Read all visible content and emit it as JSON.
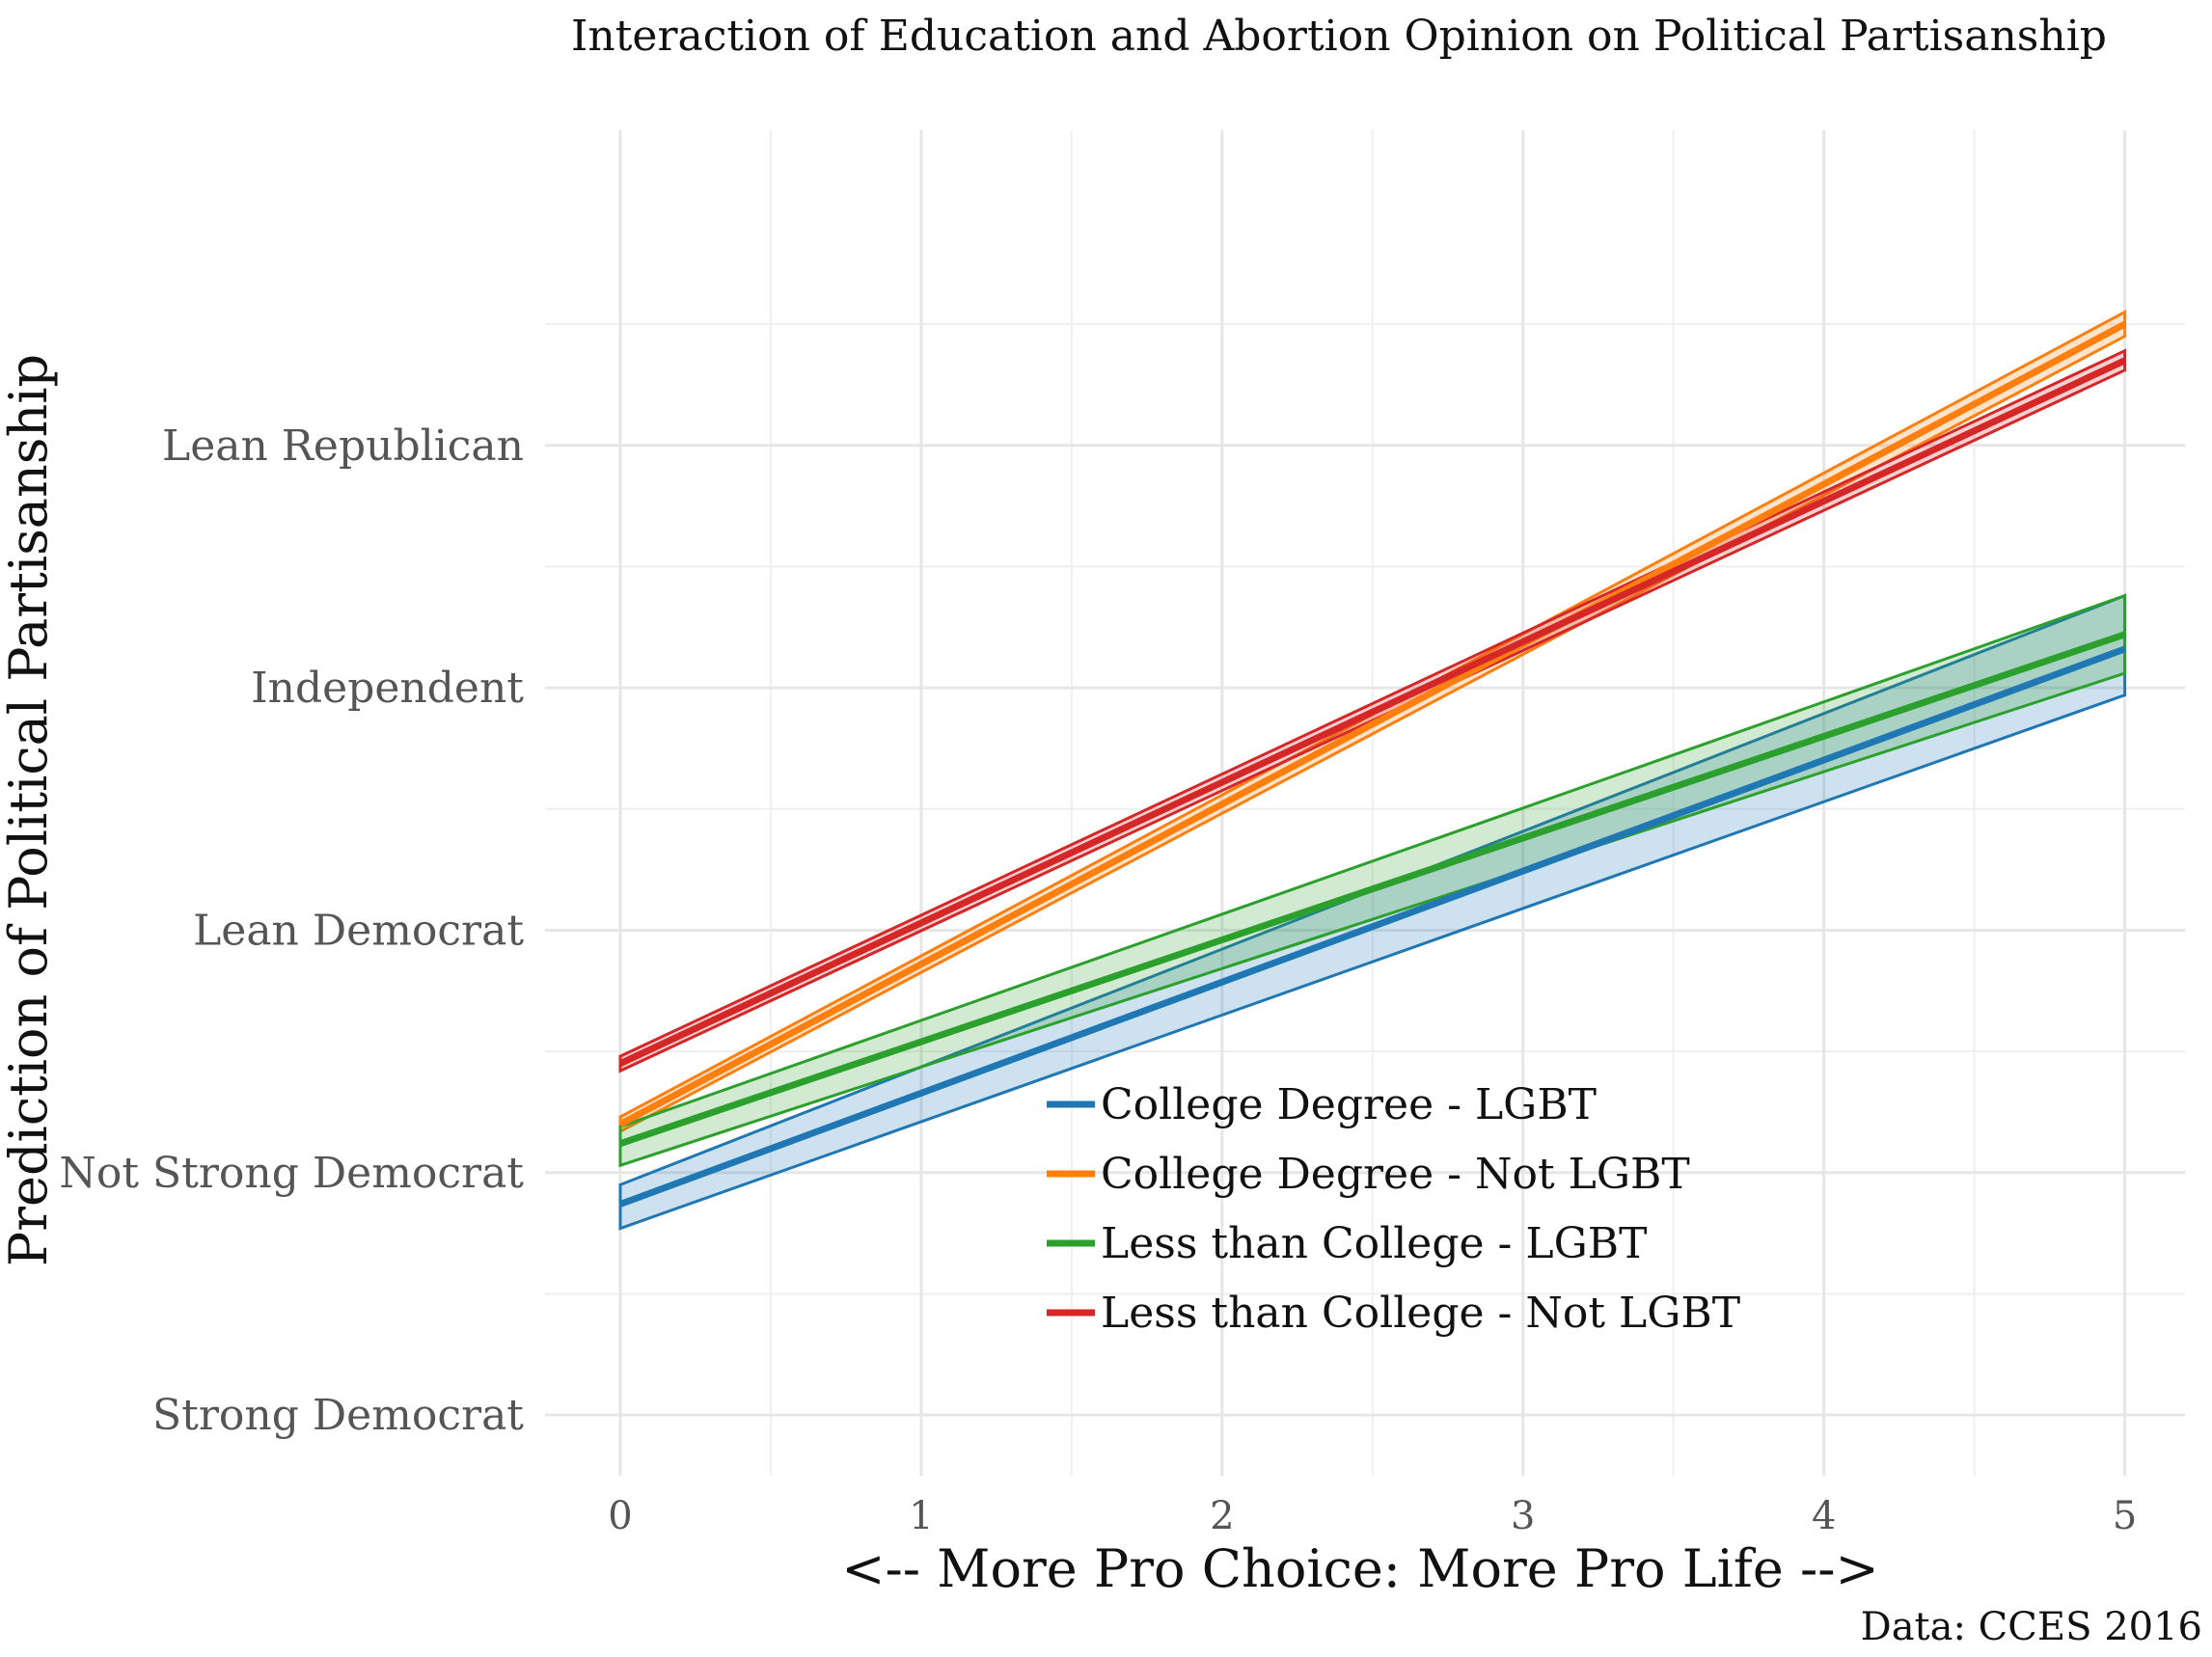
{
  "chart_data": {
    "type": "line",
    "title": "Interaction of Education and Abortion Opinion on Political Partisanship",
    "xlabel": "<-- More Pro Choice: More Pro Life -->",
    "ylabel": "Prediction of Political Partisanship",
    "caption": "Data: CCES 2016",
    "xlim": [
      -0.25,
      5.2
    ],
    "ylim": [
      0.75,
      6.3
    ],
    "x_ticks": [
      {
        "value": 0,
        "label": "0"
      },
      {
        "value": 1,
        "label": "1"
      },
      {
        "value": 2,
        "label": "2"
      },
      {
        "value": 3,
        "label": "3"
      },
      {
        "value": 4,
        "label": "4"
      },
      {
        "value": 5,
        "label": "5"
      }
    ],
    "y_ticks": [
      {
        "value": 1,
        "label": "Strong Democrat"
      },
      {
        "value": 2,
        "label": "Not Strong Democrat"
      },
      {
        "value": 3,
        "label": "Lean Democrat"
      },
      {
        "value": 4,
        "label": "Independent"
      },
      {
        "value": 5,
        "label": "Lean Republican"
      }
    ],
    "grid": true,
    "legend_position": "bottom-center-inside",
    "series": [
      {
        "name": "College Degree - LGBT",
        "color": "#1f77b4",
        "x": [
          0,
          5
        ],
        "fit": [
          1.87,
          4.16
        ],
        "lower": [
          1.77,
          3.97
        ],
        "upper": [
          1.95,
          4.38
        ]
      },
      {
        "name": "College Degree - Not LGBT",
        "color": "#ff7f0e",
        "x": [
          0,
          5
        ],
        "fit": [
          2.2,
          5.5
        ],
        "lower": [
          2.17,
          5.45
        ],
        "upper": [
          2.23,
          5.55
        ]
      },
      {
        "name": "Less than College - LGBT",
        "color": "#2ca02c",
        "x": [
          0,
          5
        ],
        "fit": [
          2.12,
          4.22
        ],
        "lower": [
          2.03,
          4.06
        ],
        "upper": [
          2.19,
          4.38
        ]
      },
      {
        "name": "Less than College - Not LGBT",
        "color": "#d62728",
        "x": [
          0,
          5
        ],
        "fit": [
          2.45,
          5.35
        ],
        "lower": [
          2.42,
          5.31
        ],
        "upper": [
          2.48,
          5.39
        ]
      }
    ]
  }
}
